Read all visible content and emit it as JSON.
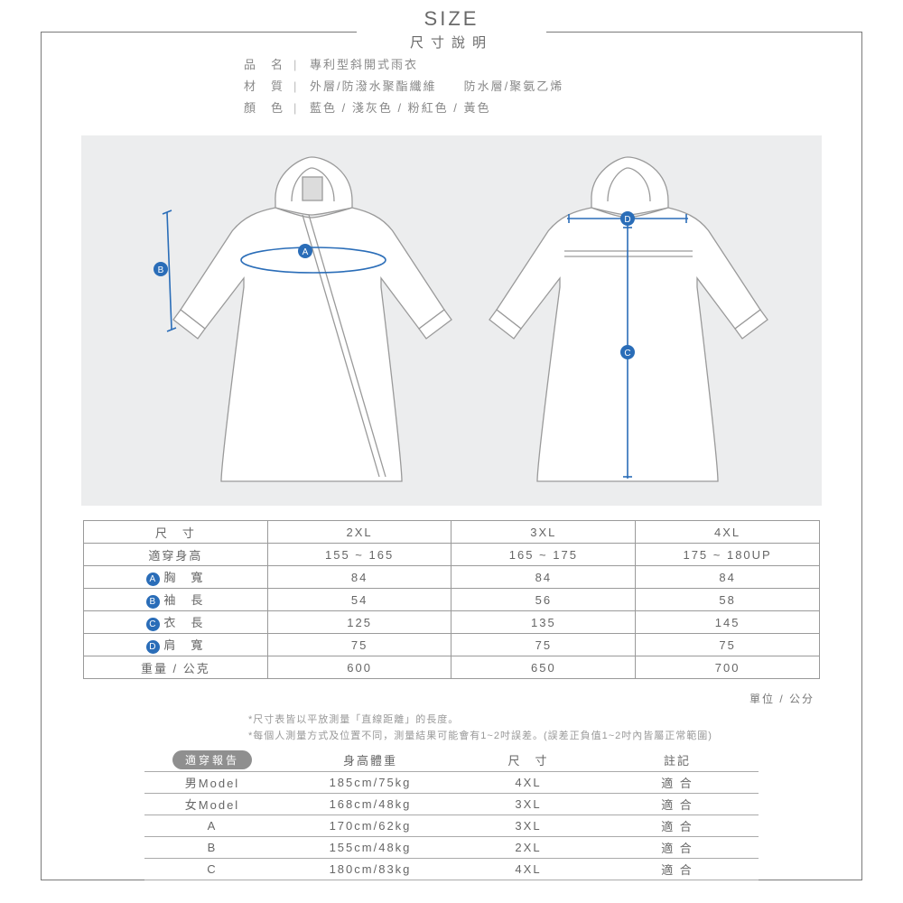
{
  "title": {
    "en": "SIZE",
    "zh": "尺寸說明"
  },
  "specs": [
    {
      "label": "品　名",
      "value": "專利型斜開式雨衣"
    },
    {
      "label": "材　質",
      "value": "外層/防潑水聚酯纖維　　防水層/聚氨乙烯"
    },
    {
      "label": "顏　色",
      "value": "藍色 / 淺灰色 / 粉紅色 / 黃色"
    }
  ],
  "diagram": {
    "background": "#ecedee",
    "garment_fill": "#ffffff",
    "garment_stroke": "#9a9a9a",
    "measure_color": "#2a6db8",
    "badge_colors": {
      "A": "#2a6db8",
      "B": "#2a6db8",
      "C": "#2a6db8",
      "D": "#2a6db8"
    }
  },
  "size_table": {
    "header": [
      "尺　寸",
      "2XL",
      "3XL",
      "4XL"
    ],
    "rows": [
      {
        "badge": null,
        "label": "適穿身高",
        "vals": [
          "155 ~ 165",
          "165 ~ 175",
          "175 ~ 180UP"
        ]
      },
      {
        "badge": "A",
        "badge_color": "#2a6db8",
        "label": "胸　寬",
        "vals": [
          "84",
          "84",
          "84"
        ]
      },
      {
        "badge": "B",
        "badge_color": "#2a6db8",
        "label": "袖　長",
        "vals": [
          "54",
          "56",
          "58"
        ]
      },
      {
        "badge": "C",
        "badge_color": "#2a6db8",
        "label": "衣　長",
        "vals": [
          "125",
          "135",
          "145"
        ]
      },
      {
        "badge": "D",
        "badge_color": "#2a6db8",
        "label": "肩　寬",
        "vals": [
          "75",
          "75",
          "75"
        ]
      },
      {
        "badge": null,
        "label": "重量 / 公克",
        "vals": [
          "600",
          "650",
          "700"
        ]
      }
    ],
    "unit": "單位 / 公分"
  },
  "notes": [
    "*尺寸表皆以平放測量「直線距離」的長度。",
    "*每個人測量方式及位置不同，測量結果可能會有1~2吋誤差。(誤差正負值1~2吋內皆屬正常範圍)"
  ],
  "fit_table": {
    "badge": "適穿報告",
    "header": [
      "",
      "身高體重",
      "尺　寸",
      "註記"
    ],
    "rows": [
      [
        "男Model",
        "185cm/75kg",
        "4XL",
        "適 合"
      ],
      [
        "女Model",
        "168cm/48kg",
        "3XL",
        "適 合"
      ],
      [
        "A",
        "170cm/62kg",
        "3XL",
        "適 合"
      ],
      [
        "B",
        "155cm/48kg",
        "2XL",
        "適 合"
      ],
      [
        "C",
        "180cm/83kg",
        "4XL",
        "適 合"
      ]
    ]
  }
}
